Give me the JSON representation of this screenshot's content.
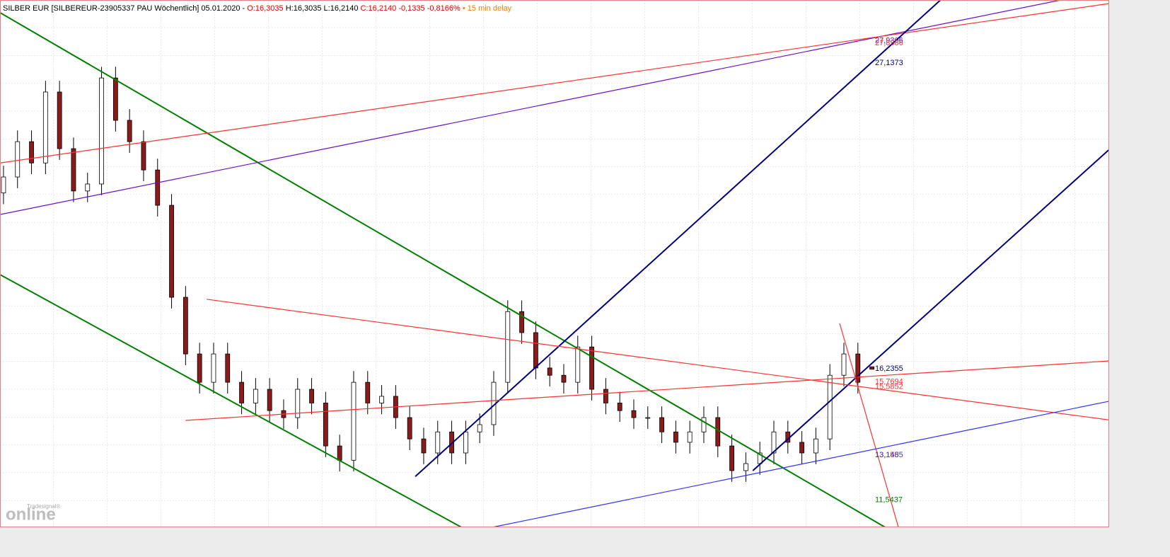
{
  "chart_data": {
    "type": "candlestick",
    "title": "SILBER EUR [SILBEREUR-23905337 PAU Wöchentlich] 05.01.2020 -",
    "quote_open": "O:16,3035",
    "quote_hl": "H:16,3035 L:16,2140",
    "quote_close": "C:16,2140 -0,1335 -0,8166%",
    "delay": "• 15 min delay",
    "logo_small": "Tradesignal®",
    "logo": "online",
    "ylim": [
      10.58,
      29.38
    ],
    "xlim": [
      -0.25,
      78.94
    ],
    "up_color": "#ffffff",
    "down_color": "#8b1a1a",
    "open": [
      22.5,
      23.07,
      24.33,
      23.57,
      26.1,
      24.08,
      22.57,
      22.82,
      26.6,
      25.09,
      24.33,
      23.32,
      22.06,
      18.78,
      16.76,
      15.75,
      16.76,
      15.75,
      15.01,
      15.5,
      14.74,
      14.49,
      15.5,
      15.01,
      13.48,
      12.97,
      15.75,
      15.01,
      15.25,
      14.49,
      13.73,
      13.23,
      13.98,
      13.23,
      13.98,
      14.24,
      15.75,
      18.27,
      17.52,
      16.26,
      16.0,
      15.75,
      17.01,
      15.5,
      15.01,
      14.74,
      14.49,
      14.49,
      13.98,
      13.61,
      13.98,
      14.49,
      13.48,
      12.6,
      12.85,
      13.23,
      13.98,
      13.61,
      13.23,
      13.73,
      16.0,
      16.76,
      16.3035
    ],
    "high": [
      23.47,
      24.73,
      24.73,
      26.5,
      26.5,
      24.48,
      23.22,
      27.0,
      27.0,
      25.49,
      24.73,
      23.72,
      22.46,
      19.18,
      17.16,
      17.16,
      17.16,
      16.15,
      15.9,
      15.9,
      15.14,
      15.9,
      15.9,
      15.41,
      13.88,
      16.15,
      16.15,
      15.65,
      15.65,
      14.89,
      14.13,
      14.38,
      14.38,
      14.38,
      14.64,
      16.15,
      18.67,
      18.67,
      17.92,
      16.66,
      16.4,
      17.41,
      17.41,
      15.9,
      15.41,
      15.14,
      14.89,
      14.89,
      14.38,
      14.38,
      14.89,
      14.89,
      13.88,
      13.25,
      13.63,
      14.38,
      14.38,
      14.01,
      14.13,
      16.4,
      17.16,
      17.16,
      16.3035
    ],
    "low": [
      22.1,
      22.67,
      23.17,
      23.17,
      23.68,
      22.17,
      22.17,
      22.42,
      24.69,
      23.93,
      22.92,
      21.66,
      18.38,
      16.36,
      15.35,
      15.35,
      15.35,
      14.61,
      14.61,
      14.34,
      14.09,
      14.09,
      14.61,
      13.08,
      12.57,
      12.57,
      14.61,
      14.61,
      14.09,
      13.33,
      12.83,
      12.83,
      12.83,
      12.83,
      13.58,
      13.84,
      15.35,
      17.12,
      15.86,
      15.6,
      15.35,
      15.35,
      15.1,
      14.61,
      14.34,
      14.09,
      14.09,
      13.58,
      13.21,
      13.21,
      13.58,
      13.08,
      12.2,
      12.2,
      12.45,
      12.83,
      13.21,
      12.83,
      12.83,
      13.33,
      15.6,
      15.35,
      16.214
    ],
    "close": [
      23.07,
      24.33,
      23.57,
      26.1,
      24.08,
      22.57,
      22.82,
      26.6,
      25.09,
      24.33,
      23.32,
      22.06,
      18.78,
      16.76,
      15.75,
      16.76,
      15.75,
      15.01,
      15.5,
      14.74,
      14.49,
      15.5,
      15.01,
      13.48,
      12.97,
      15.75,
      15.01,
      15.25,
      14.49,
      13.73,
      13.23,
      13.98,
      13.23,
      13.98,
      14.24,
      15.75,
      18.27,
      17.52,
      16.26,
      16.0,
      15.75,
      17.01,
      15.5,
      15.01,
      14.74,
      14.49,
      14.49,
      13.98,
      13.61,
      13.98,
      14.49,
      13.48,
      12.6,
      12.85,
      13.23,
      13.98,
      13.61,
      13.23,
      13.73,
      16.0,
      16.76,
      15.75,
      16.214
    ],
    "trendlines": [
      {
        "color": "#008000",
        "x": [
          -0.25,
          66.6
        ],
        "y": [
          28.93,
          9.52
        ]
      },
      {
        "color": "#008000",
        "x": [
          -0.25,
          32.7
        ],
        "y": [
          19.59,
          10.58
        ]
      },
      {
        "color": "#6a0dcc",
        "x": [
          -0.25,
          75.5
        ],
        "y": [
          21.73,
          29.38
        ]
      },
      {
        "color": "#ff3030",
        "x": [
          -0.25,
          78.9
        ],
        "y": [
          23.57,
          29.25
        ]
      },
      {
        "color": "#000080",
        "x": [
          29.4,
          66.9
        ],
        "y": [
          12.39,
          29.38
        ]
      },
      {
        "color": "#000080",
        "x": [
          53.5,
          78.9
        ],
        "y": [
          12.6,
          24.03
        ]
      },
      {
        "color": "#ff3030",
        "x": [
          14.5,
          78.9
        ],
        "y": [
          18.71,
          14.41
        ]
      },
      {
        "color": "#ff3030",
        "x": [
          13.0,
          78.9
        ],
        "y": [
          14.39,
          16.51
        ]
      },
      {
        "color": "#ff3030",
        "x": [
          14.5,
          14.5
        ],
        "y": [
          18.71,
          18.71
        ]
      },
      {
        "color": "#ff3030",
        "x": [
          59.7,
          63.9
        ],
        "y": [
          17.85,
          10.57
        ]
      },
      {
        "color": "#3030ff",
        "x": [
          34.8,
          78.9
        ],
        "y": [
          10.57,
          15.07
        ]
      }
    ],
    "level_labels": [
      {
        "value": 27.9306,
        "label": "27,9306",
        "color": "#6a0dcc"
      },
      {
        "value": 27.8386,
        "label": "27,8386",
        "color": "#ff3030"
      },
      {
        "value": 27.1373,
        "label": "27,1373",
        "color": "#000080"
      },
      {
        "value": 16.2355,
        "label": "16,2355",
        "color": "#000080"
      },
      {
        "value": 15.7694,
        "label": "15,7694",
        "color": "#ff3030"
      },
      {
        "value": 15.5852,
        "label": "15,5852",
        "color": "#ff3030"
      },
      {
        "value": 13.155,
        "label": "13,155",
        "color": "#ff3030"
      },
      {
        "value": 13.1485,
        "label": "13,1485",
        "color": "#3030ff"
      },
      {
        "value": 11.5437,
        "label": "11,5437",
        "color": "#008000"
      }
    ]
  }
}
